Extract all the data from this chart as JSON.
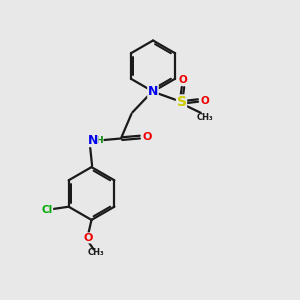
{
  "background_color": "#e8e8e8",
  "bond_color": "#1a1a1a",
  "bond_width": 1.6,
  "atom_colors": {
    "N": "#0000ee",
    "O": "#ee0000",
    "S": "#cccc00",
    "Cl": "#00aa00",
    "C": "#1a1a1a",
    "H": "#008800"
  },
  "font_size_atom": 8.5,
  "xlim": [
    0,
    10
  ],
  "ylim": [
    0,
    10
  ]
}
